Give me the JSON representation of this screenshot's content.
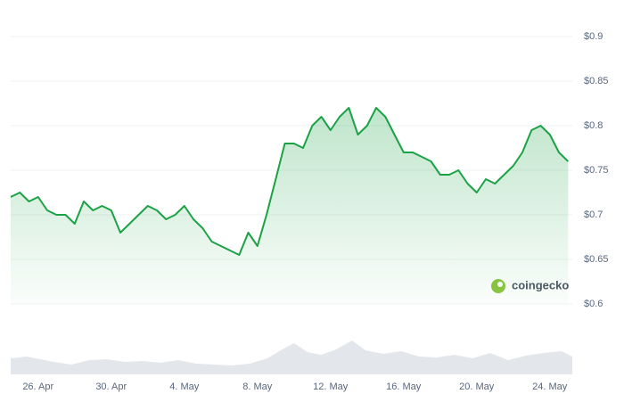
{
  "chart_data": {
    "type": "line",
    "categories": [
      null,
      null,
      null,
      "26. Apr",
      null,
      null,
      null,
      null,
      null,
      null,
      null,
      "30. Apr",
      null,
      null,
      null,
      null,
      null,
      null,
      null,
      "4. May",
      null,
      null,
      null,
      null,
      null,
      null,
      null,
      "8. May",
      null,
      null,
      null,
      null,
      null,
      null,
      null,
      "12. May",
      null,
      null,
      null,
      null,
      null,
      null,
      null,
      "16. May",
      null,
      null,
      null,
      null,
      null,
      null,
      null,
      "20. May",
      null,
      null,
      null,
      null,
      null,
      null,
      null,
      "24. May",
      null,
      null
    ],
    "values": [
      0.72,
      0.725,
      0.715,
      0.72,
      0.705,
      0.7,
      0.7,
      0.69,
      0.715,
      0.705,
      0.71,
      0.705,
      0.68,
      0.69,
      0.7,
      0.71,
      0.705,
      0.695,
      0.7,
      0.71,
      0.695,
      0.685,
      0.67,
      0.665,
      0.66,
      0.655,
      0.68,
      0.665,
      0.7,
      0.74,
      0.78,
      0.78,
      0.775,
      0.8,
      0.81,
      0.795,
      0.81,
      0.82,
      0.79,
      0.8,
      0.82,
      0.81,
      0.79,
      0.77,
      0.77,
      0.765,
      0.76,
      0.745,
      0.745,
      0.75,
      0.735,
      0.725,
      0.74,
      0.735,
      0.745,
      0.755,
      0.77,
      0.795,
      0.8,
      0.79,
      0.77,
      0.76
    ],
    "color": "#1ba245",
    "ylim": [
      0.6,
      0.9
    ],
    "yticks": [
      {
        "value": 0.6,
        "label": "$0.6"
      },
      {
        "value": 0.65,
        "label": "$0.65"
      },
      {
        "value": 0.7,
        "label": "$0.7"
      },
      {
        "value": 0.75,
        "label": "$0.75"
      },
      {
        "value": 0.8,
        "label": "$0.8"
      },
      {
        "value": 0.85,
        "label": "$0.85"
      },
      {
        "value": 0.9,
        "label": "$0.9"
      }
    ],
    "grid": true,
    "watermark": "coingecko"
  }
}
